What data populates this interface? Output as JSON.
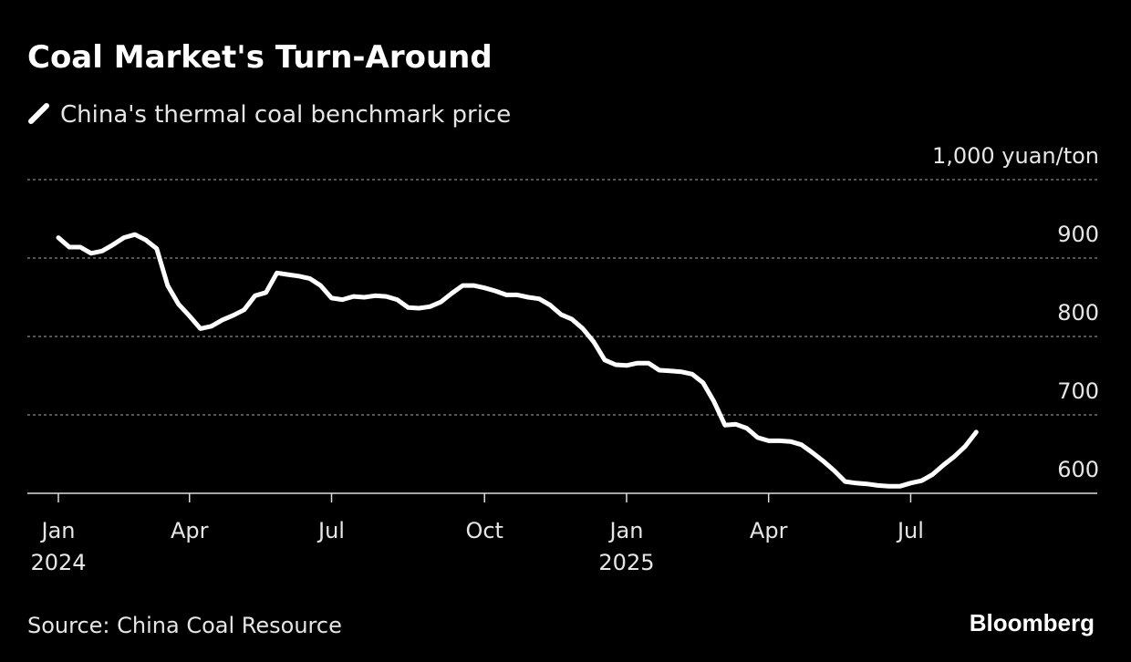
{
  "chart_data": {
    "type": "line",
    "title": "Coal Market's Turn-Around",
    "source": "Source: China Coal Resource",
    "brand": "Bloomberg",
    "categories": [
      "Jan",
      null,
      null,
      null,
      null,
      null,
      null,
      null,
      null,
      null,
      null,
      null,
      "Apr",
      null,
      null,
      null,
      null,
      null,
      null,
      null,
      null,
      null,
      null,
      null,
      null,
      "Jul",
      null,
      null,
      null,
      null,
      null,
      null,
      null,
      null,
      null,
      null,
      null,
      null,
      null,
      "Oct",
      null,
      null,
      null,
      null,
      null,
      null,
      null,
      null,
      null,
      null,
      null,
      null,
      "Jan",
      null,
      null,
      null,
      null,
      null,
      null,
      null,
      null,
      null,
      null,
      null,
      null,
      "Apr",
      null,
      null,
      null,
      null,
      null,
      null,
      null,
      null,
      null,
      null,
      null,
      null,
      "Jul",
      null,
      null,
      null,
      null,
      null,
      null
    ],
    "years": {
      "0": "2024",
      "52": "2025"
    },
    "series": [
      {
        "name": "China's thermal coal benchmark price",
        "color": "#ffffff",
        "values": [
          926,
          914,
          914,
          906,
          909,
          917,
          926,
          930,
          923,
          912,
          865,
          841,
          826,
          810,
          813,
          821,
          827,
          834,
          852,
          856,
          881,
          879,
          877,
          874,
          865,
          849,
          847,
          851,
          850,
          852,
          851,
          847,
          837,
          836,
          838,
          844,
          855,
          865,
          865,
          862,
          858,
          853,
          853,
          850,
          848,
          840,
          828,
          822,
          810,
          793,
          770,
          764,
          763,
          766,
          766,
          757,
          756,
          755,
          752,
          741,
          717,
          687,
          688,
          683,
          671,
          667,
          667,
          666,
          662,
          652,
          641,
          629,
          615,
          613,
          612,
          610,
          609,
          609,
          613,
          616,
          624,
          636,
          647,
          660,
          678
        ]
      }
    ],
    "ylim": [
      600,
      1000
    ],
    "yticks": [
      600,
      700,
      800,
      900,
      {
        "value": 1000,
        "label": "1,000 yuan/ton"
      }
    ],
    "grid": true
  }
}
